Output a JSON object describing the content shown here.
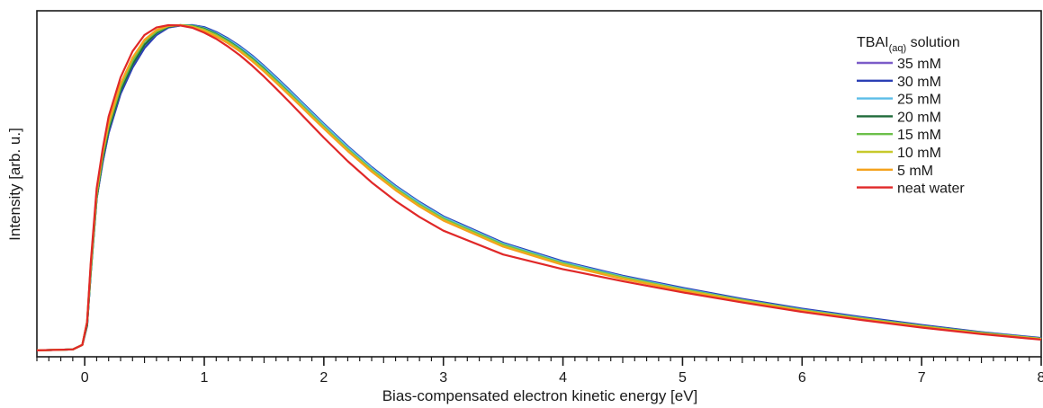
{
  "chart_data": {
    "type": "line",
    "title": "",
    "xlabel": "Bias-compensated electron kinetic energy [eV]",
    "ylabel": "Intensity [arb. u.]",
    "xlim": [
      -0.4,
      8.0
    ],
    "ylim": [
      0,
      1.0
    ],
    "x_major_ticks": [
      0,
      1,
      2,
      3,
      4,
      5,
      6,
      7,
      8
    ],
    "x_tick_labels": [
      "0",
      "1",
      "2",
      "3",
      "4",
      "5",
      "6",
      "7",
      "8"
    ],
    "x_minor_step": 0.1,
    "y_ticks_shown": false,
    "grid": false,
    "legend": {
      "title_main": "TBAI",
      "title_sub": "(aq)",
      "title_suffix": " solution",
      "placement": "top-right"
    },
    "series": [
      {
        "name": "35 mM",
        "color": "#7b5cc8",
        "x": [
          -0.4,
          -0.1,
          -0.02,
          0.02,
          0.05,
          0.1,
          0.15,
          0.2,
          0.3,
          0.4,
          0.5,
          0.6,
          0.7,
          0.8,
          0.9,
          1.0,
          1.1,
          1.2,
          1.3,
          1.4,
          1.5,
          1.6,
          1.7,
          1.8,
          1.9,
          2.0,
          2.2,
          2.4,
          2.6,
          2.8,
          3.0,
          3.5,
          4.0,
          4.5,
          5.0,
          5.5,
          6.0,
          6.5,
          7.0,
          7.5,
          8.0
        ],
        "y": [
          0.003,
          0.006,
          0.02,
          0.08,
          0.24,
          0.47,
          0.58,
          0.67,
          0.79,
          0.87,
          0.93,
          0.97,
          0.993,
          0.999,
          1.0,
          0.993,
          0.978,
          0.958,
          0.934,
          0.906,
          0.874,
          0.84,
          0.805,
          0.769,
          0.733,
          0.697,
          0.628,
          0.564,
          0.507,
          0.457,
          0.413,
          0.332,
          0.275,
          0.231,
          0.194,
          0.16,
          0.13,
          0.104,
          0.08,
          0.058,
          0.04
        ]
      },
      {
        "name": "30 mM",
        "color": "#2b3fb5",
        "x": [
          -0.4,
          -0.1,
          -0.02,
          0.02,
          0.05,
          0.1,
          0.15,
          0.2,
          0.3,
          0.4,
          0.5,
          0.6,
          0.7,
          0.8,
          0.9,
          1.0,
          1.1,
          1.2,
          1.3,
          1.4,
          1.5,
          1.6,
          1.7,
          1.8,
          1.9,
          2.0,
          2.2,
          2.4,
          2.6,
          2.8,
          3.0,
          3.5,
          4.0,
          4.5,
          5.0,
          5.5,
          6.0,
          6.5,
          7.0,
          7.5,
          8.0
        ],
        "y": [
          0.003,
          0.006,
          0.02,
          0.08,
          0.24,
          0.47,
          0.58,
          0.67,
          0.79,
          0.87,
          0.93,
          0.97,
          0.993,
          0.999,
          1.0,
          0.994,
          0.979,
          0.959,
          0.935,
          0.907,
          0.875,
          0.841,
          0.806,
          0.77,
          0.734,
          0.698,
          0.629,
          0.565,
          0.508,
          0.458,
          0.414,
          0.333,
          0.276,
          0.232,
          0.195,
          0.161,
          0.131,
          0.105,
          0.081,
          0.059,
          0.041
        ]
      },
      {
        "name": "25 mM",
        "color": "#5bbde8",
        "x": [
          -0.4,
          -0.1,
          -0.02,
          0.02,
          0.05,
          0.1,
          0.15,
          0.2,
          0.3,
          0.4,
          0.5,
          0.6,
          0.7,
          0.8,
          0.9,
          1.0,
          1.1,
          1.2,
          1.3,
          1.4,
          1.5,
          1.6,
          1.7,
          1.8,
          1.9,
          2.0,
          2.2,
          2.4,
          2.6,
          2.8,
          3.0,
          3.5,
          4.0,
          4.5,
          5.0,
          5.5,
          6.0,
          6.5,
          7.0,
          7.5,
          8.0
        ],
        "y": [
          0.003,
          0.006,
          0.02,
          0.08,
          0.24,
          0.47,
          0.59,
          0.68,
          0.8,
          0.88,
          0.94,
          0.975,
          0.995,
          1.0,
          0.999,
          0.991,
          0.976,
          0.956,
          0.932,
          0.904,
          0.872,
          0.838,
          0.803,
          0.767,
          0.731,
          0.695,
          0.626,
          0.562,
          0.505,
          0.455,
          0.411,
          0.33,
          0.273,
          0.229,
          0.192,
          0.158,
          0.128,
          0.102,
          0.078,
          0.057,
          0.039
        ]
      },
      {
        "name": "20 mM",
        "color": "#1f6b3a",
        "x": [
          -0.4,
          -0.1,
          -0.02,
          0.02,
          0.05,
          0.1,
          0.15,
          0.2,
          0.3,
          0.4,
          0.5,
          0.6,
          0.7,
          0.8,
          0.9,
          1.0,
          1.1,
          1.2,
          1.3,
          1.4,
          1.5,
          1.6,
          1.7,
          1.8,
          1.9,
          2.0,
          2.2,
          2.4,
          2.6,
          2.8,
          3.0,
          3.5,
          4.0,
          4.5,
          5.0,
          5.5,
          6.0,
          6.5,
          7.0,
          7.5,
          8.0
        ],
        "y": [
          0.003,
          0.006,
          0.02,
          0.08,
          0.24,
          0.47,
          0.59,
          0.68,
          0.8,
          0.88,
          0.94,
          0.976,
          0.995,
          1.0,
          0.998,
          0.989,
          0.973,
          0.952,
          0.927,
          0.898,
          0.866,
          0.831,
          0.796,
          0.76,
          0.724,
          0.688,
          0.618,
          0.554,
          0.497,
          0.447,
          0.404,
          0.324,
          0.268,
          0.225,
          0.189,
          0.156,
          0.126,
          0.1,
          0.077,
          0.056,
          0.038
        ]
      },
      {
        "name": "15 mM",
        "color": "#6cc04a",
        "x": [
          -0.4,
          -0.1,
          -0.02,
          0.02,
          0.05,
          0.1,
          0.15,
          0.2,
          0.3,
          0.4,
          0.5,
          0.6,
          0.7,
          0.8,
          0.9,
          1.0,
          1.1,
          1.2,
          1.3,
          1.4,
          1.5,
          1.6,
          1.7,
          1.8,
          1.9,
          2.0,
          2.2,
          2.4,
          2.6,
          2.8,
          3.0,
          3.5,
          4.0,
          4.5,
          5.0,
          5.5,
          6.0,
          6.5,
          7.0,
          7.5,
          8.0
        ],
        "y": [
          0.003,
          0.006,
          0.02,
          0.09,
          0.25,
          0.48,
          0.6,
          0.69,
          0.81,
          0.89,
          0.95,
          0.98,
          0.997,
          1.0,
          0.997,
          0.987,
          0.971,
          0.95,
          0.925,
          0.896,
          0.864,
          0.83,
          0.795,
          0.76,
          0.724,
          0.689,
          0.62,
          0.557,
          0.5,
          0.45,
          0.407,
          0.327,
          0.27,
          0.227,
          0.19,
          0.157,
          0.127,
          0.101,
          0.078,
          0.057,
          0.039
        ]
      },
      {
        "name": "10 mM",
        "color": "#c7c92c",
        "x": [
          -0.4,
          -0.1,
          -0.02,
          0.02,
          0.05,
          0.1,
          0.15,
          0.2,
          0.3,
          0.4,
          0.5,
          0.6,
          0.7,
          0.8,
          0.9,
          1.0,
          1.1,
          1.2,
          1.3,
          1.4,
          1.5,
          1.6,
          1.7,
          1.8,
          1.9,
          2.0,
          2.2,
          2.4,
          2.6,
          2.8,
          3.0,
          3.5,
          4.0,
          4.5,
          5.0,
          5.5,
          6.0,
          6.5,
          7.0,
          7.5,
          8.0
        ],
        "y": [
          0.003,
          0.006,
          0.02,
          0.09,
          0.26,
          0.49,
          0.61,
          0.7,
          0.82,
          0.9,
          0.955,
          0.985,
          0.998,
          1.0,
          0.995,
          0.984,
          0.967,
          0.946,
          0.921,
          0.892,
          0.86,
          0.826,
          0.791,
          0.756,
          0.72,
          0.685,
          0.616,
          0.553,
          0.496,
          0.446,
          0.403,
          0.323,
          0.267,
          0.224,
          0.188,
          0.155,
          0.125,
          0.099,
          0.076,
          0.055,
          0.038
        ]
      },
      {
        "name": "5 mM",
        "color": "#f4a21c",
        "x": [
          -0.4,
          -0.1,
          -0.02,
          0.02,
          0.05,
          0.1,
          0.15,
          0.2,
          0.3,
          0.4,
          0.5,
          0.6,
          0.7,
          0.8,
          0.9,
          1.0,
          1.1,
          1.2,
          1.3,
          1.4,
          1.5,
          1.6,
          1.7,
          1.8,
          1.9,
          2.0,
          2.2,
          2.4,
          2.6,
          2.8,
          3.0,
          3.5,
          4.0,
          4.5,
          5.0,
          5.5,
          6.0,
          6.5,
          7.0,
          7.5,
          8.0
        ],
        "y": [
          0.003,
          0.006,
          0.02,
          0.09,
          0.26,
          0.49,
          0.61,
          0.7,
          0.82,
          0.9,
          0.955,
          0.985,
          0.998,
          1.0,
          0.994,
          0.982,
          0.965,
          0.944,
          0.919,
          0.89,
          0.858,
          0.824,
          0.789,
          0.754,
          0.718,
          0.683,
          0.614,
          0.551,
          0.494,
          0.444,
          0.401,
          0.321,
          0.265,
          0.222,
          0.186,
          0.153,
          0.124,
          0.098,
          0.075,
          0.054,
          0.037
        ]
      },
      {
        "name": "neat water",
        "color": "#e02828",
        "x": [
          -0.4,
          -0.1,
          -0.02,
          0.02,
          0.05,
          0.1,
          0.15,
          0.2,
          0.3,
          0.4,
          0.5,
          0.6,
          0.7,
          0.8,
          0.9,
          1.0,
          1.1,
          1.2,
          1.3,
          1.4,
          1.5,
          1.6,
          1.7,
          1.8,
          1.9,
          2.0,
          2.2,
          2.4,
          2.6,
          2.8,
          3.0,
          3.5,
          4.0,
          4.5,
          5.0,
          5.5,
          6.0,
          6.5,
          7.0,
          7.5,
          8.0
        ],
        "y": [
          0.003,
          0.006,
          0.02,
          0.09,
          0.27,
          0.5,
          0.62,
          0.72,
          0.84,
          0.92,
          0.97,
          0.993,
          1.0,
          0.999,
          0.992,
          0.977,
          0.958,
          0.934,
          0.907,
          0.876,
          0.842,
          0.806,
          0.769,
          0.731,
          0.693,
          0.655,
          0.583,
          0.518,
          0.461,
          0.412,
          0.37,
          0.297,
          0.252,
          0.215,
          0.181,
          0.15,
          0.121,
          0.096,
          0.073,
          0.053,
          0.036
        ]
      }
    ]
  }
}
